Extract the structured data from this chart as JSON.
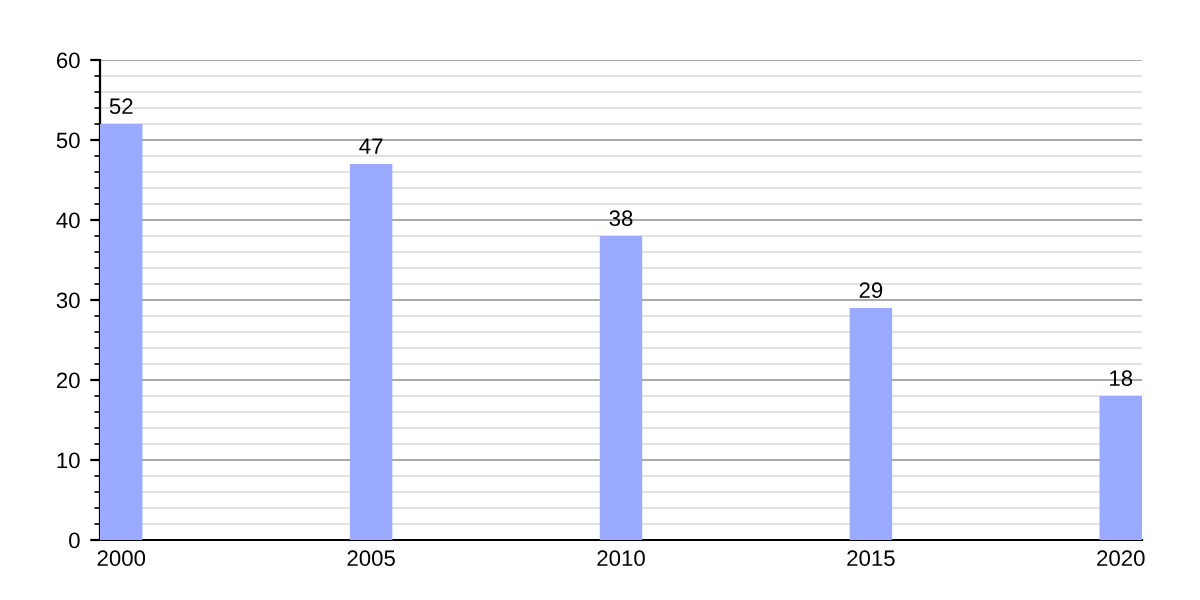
{
  "chart_data": {
    "type": "bar",
    "categories": [
      "2000",
      "2005",
      "2010",
      "2015",
      "2020"
    ],
    "values": [
      52,
      47,
      38,
      29,
      18
    ],
    "color": "#99aaff",
    "ylim": [
      0,
      60
    ],
    "yticks": [
      0,
      10,
      20,
      30,
      40,
      50,
      60
    ],
    "grid": "y",
    "data_labels": true
  }
}
